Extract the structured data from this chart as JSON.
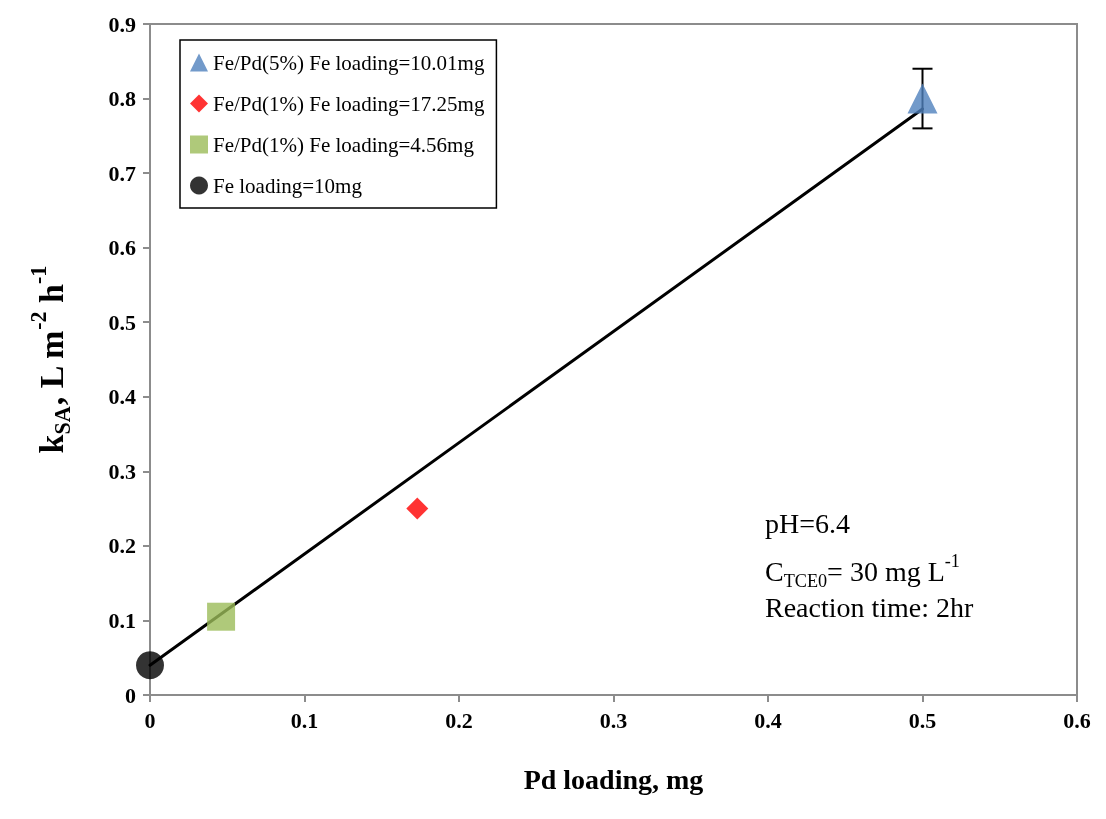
{
  "chart_data": {
    "type": "scatter",
    "xlabel": "Pd loading, mg",
    "ylabel": "k$_{SA}$, L m$^{-2}$ h$^{-1}$",
    "xlim": [
      0,
      0.6
    ],
    "xticks": [
      0,
      0.1,
      0.2,
      0.3,
      0.4,
      0.5,
      0.6
    ],
    "ylim": [
      0,
      0.9
    ],
    "yticks": [
      0,
      0.1,
      0.2,
      0.3,
      0.4,
      0.5,
      0.6,
      0.7,
      0.8,
      0.9
    ],
    "grid": false,
    "legend": "top left",
    "series": [
      {
        "name": "Fe/Pd(5%) Fe loading=10.01mg",
        "color": "#4f81bd",
        "marker": "triangle",
        "x": [
          0.5
        ],
        "values": [
          0.8
        ],
        "errors": [
          0.04
        ]
      },
      {
        "name": "Fe/Pd(1%) Fe loading=17.25mg",
        "color": "#ff0000",
        "marker": "diamond",
        "x": [
          0.173
        ],
        "values": [
          0.25
        ]
      },
      {
        "name": "Fe/Pd(1%) Fe loading=4.56mg",
        "color": "#9bbb59",
        "marker": "square",
        "x": [
          0.046
        ],
        "values": [
          0.105
        ]
      },
      {
        "name": "Fe loading=10mg",
        "color": "#000000",
        "marker": "circle",
        "x": [
          0
        ],
        "values": [
          0.04
        ]
      },
      {
        "type": "line",
        "color": "#000000",
        "marker": "none",
        "x": [
          0,
          0.5
        ],
        "values": [
          0.04,
          0.786
        ]
      }
    ],
    "annotations": [
      "pH=6.4",
      "C$_{TCE0}$= 30 mg L$^{-1}$",
      "Reaction time: 2hr"
    ]
  }
}
